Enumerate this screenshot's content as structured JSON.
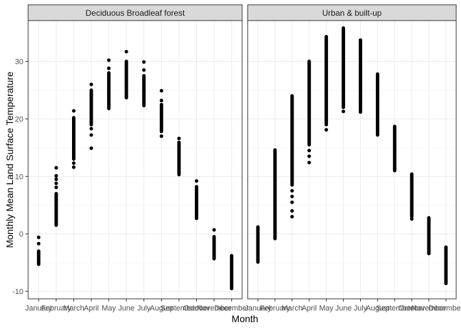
{
  "chart_data": {
    "type": "scatter",
    "xlabel": "Month",
    "ylabel": "Monthly Mean Land Surface Temperature",
    "ylim": [
      -11.3,
      37.1
    ],
    "yticks": [
      -10,
      0,
      10,
      20,
      30
    ],
    "grid": true,
    "months": [
      "January",
      "February",
      "March",
      "April",
      "May",
      "June",
      "July",
      "August",
      "September",
      "October",
      "November",
      "December"
    ],
    "panels": [
      {
        "title": "Deciduous Broadleaf forest",
        "ranges": [
          {
            "month": "January",
            "min": -5.3,
            "max": -3.0
          },
          {
            "month": "February",
            "min": 1.5,
            "max": 7.0
          },
          {
            "month": "March",
            "min": 13.0,
            "max": 20.2
          },
          {
            "month": "April",
            "min": 19.0,
            "max": 25.0
          },
          {
            "month": "May",
            "min": 21.8,
            "max": 28.0
          },
          {
            "month": "June",
            "min": 23.8,
            "max": 30.0
          },
          {
            "month": "July",
            "min": 22.3,
            "max": 27.5
          },
          {
            "month": "August",
            "min": 17.8,
            "max": 22.5
          },
          {
            "month": "September",
            "min": 10.3,
            "max": 15.8
          },
          {
            "month": "October",
            "min": 2.8,
            "max": 8.2
          },
          {
            "month": "November",
            "min": -4.2,
            "max": -0.5
          },
          {
            "month": "December",
            "min": -9.3,
            "max": -4.0
          }
        ],
        "outliers": [
          {
            "month": "January",
            "y": -0.6
          },
          {
            "month": "January",
            "y": -1.7
          },
          {
            "month": "February",
            "y": 11.5
          },
          {
            "month": "February",
            "y": 10.1
          },
          {
            "month": "February",
            "y": 9.5
          },
          {
            "month": "February",
            "y": 8.8
          },
          {
            "month": "February",
            "y": 8.1
          },
          {
            "month": "March",
            "y": 21.4
          },
          {
            "month": "March",
            "y": 11.6
          },
          {
            "month": "March",
            "y": 12.3
          },
          {
            "month": "March",
            "y": 13.3
          },
          {
            "month": "April",
            "y": 26.0
          },
          {
            "month": "April",
            "y": 14.9
          },
          {
            "month": "April",
            "y": 17.2
          },
          {
            "month": "April",
            "y": 18.3
          },
          {
            "month": "May",
            "y": 30.2
          },
          {
            "month": "May",
            "y": 28.8
          },
          {
            "month": "June",
            "y": 31.7
          },
          {
            "month": "June",
            "y": 23.7
          },
          {
            "month": "July",
            "y": 29.9
          },
          {
            "month": "July",
            "y": 28.5
          },
          {
            "month": "August",
            "y": 24.9
          },
          {
            "month": "August",
            "y": 17.0
          },
          {
            "month": "August",
            "y": 23.2
          },
          {
            "month": "September",
            "y": 16.6
          },
          {
            "month": "September",
            "y": 15.9
          },
          {
            "month": "October",
            "y": 9.2
          },
          {
            "month": "October",
            "y": 2.7
          },
          {
            "month": "November",
            "y": 0.7
          },
          {
            "month": "November",
            "y": -4.3
          },
          {
            "month": "December",
            "y": -3.8
          },
          {
            "month": "December",
            "y": -9.5
          }
        ]
      },
      {
        "title": "Urban & built-up",
        "ranges": [
          {
            "month": "January",
            "min": -4.9,
            "max": 1.2
          },
          {
            "month": "February",
            "min": -0.8,
            "max": 14.6
          },
          {
            "month": "March",
            "min": 8.5,
            "max": 24.0
          },
          {
            "month": "April",
            "min": 15.5,
            "max": 30.0
          },
          {
            "month": "May",
            "min": 19.0,
            "max": 34.3
          },
          {
            "month": "June",
            "min": 22.0,
            "max": 35.8
          },
          {
            "month": "July",
            "min": 21.5,
            "max": 33.5
          },
          {
            "month": "August",
            "min": 17.2,
            "max": 27.8
          },
          {
            "month": "September",
            "min": 11.0,
            "max": 18.7
          },
          {
            "month": "October",
            "min": 3.0,
            "max": 10.4
          },
          {
            "month": "November",
            "min": -3.3,
            "max": 2.8
          },
          {
            "month": "December",
            "min": -8.5,
            "max": -2.3
          }
        ],
        "outliers": [
          {
            "month": "February",
            "y": -0.8
          },
          {
            "month": "March",
            "y": 3.0
          },
          {
            "month": "March",
            "y": 4.0
          },
          {
            "month": "March",
            "y": 5.5
          },
          {
            "month": "March",
            "y": 6.5
          },
          {
            "month": "March",
            "y": 7.5
          },
          {
            "month": "April",
            "y": 12.4
          },
          {
            "month": "April",
            "y": 13.5
          },
          {
            "month": "April",
            "y": 14.5
          },
          {
            "month": "May",
            "y": 18.1
          },
          {
            "month": "June",
            "y": 21.3
          },
          {
            "month": "July",
            "y": 33.7
          },
          {
            "month": "July",
            "y": 21.2
          },
          {
            "month": "October",
            "y": 2.6
          },
          {
            "month": "November",
            "y": -3.4
          },
          {
            "month": "December",
            "y": -8.6
          }
        ]
      }
    ]
  }
}
